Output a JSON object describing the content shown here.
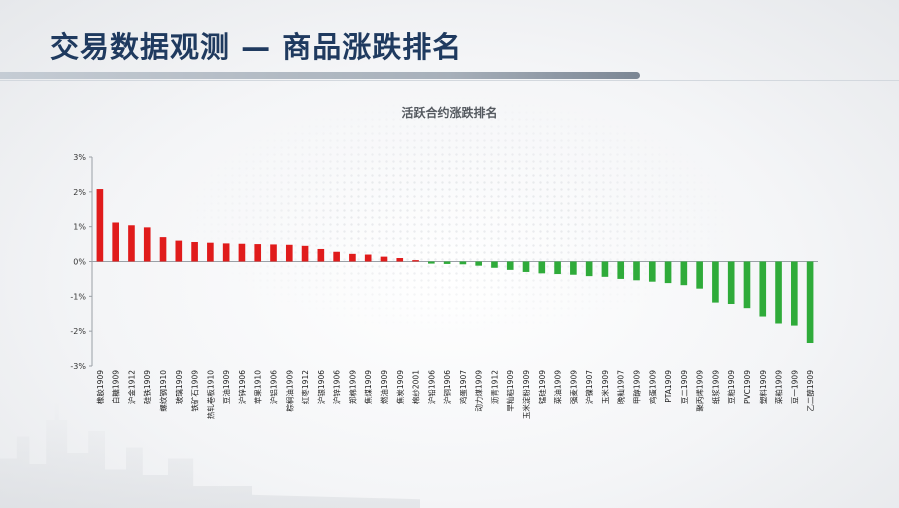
{
  "header": {
    "title": "交易数据观测 — 商品涨跌排名"
  },
  "chart_data": {
    "type": "bar",
    "title": "活跃合约涨跌排名",
    "xlabel": "",
    "ylabel": "",
    "ylim": [
      -3,
      3
    ],
    "yticks": [
      3,
      2,
      1,
      0,
      -1,
      -2,
      -3
    ],
    "ytick_labels": [
      "3%",
      "2%",
      "1%",
      "0%",
      "-1%",
      "-2%",
      "-3%"
    ],
    "colors": {
      "positive": "#e01b1b",
      "negative": "#2fab3a"
    },
    "grid": false,
    "categories": [
      "橡胶1909",
      "白糖1909",
      "沪金1912",
      "硅铁1909",
      "螺纹钢1910",
      "玻璃1909",
      "铁矿石1909",
      "热轧卷板1910",
      "豆油1909",
      "沪锌1906",
      "苹果1910",
      "沪铝1906",
      "棕榈油1909",
      "红枣1912",
      "沪银1906",
      "沪锌1906",
      "郑棉1909",
      "焦煤1909",
      "燃油1909",
      "焦炭1909",
      "棉纱2001",
      "沪铅1906",
      "沪铜1906",
      "鸡蛋1907",
      "动力煤1909",
      "沥青1912",
      "早籼稻1909",
      "玉米淀粉1909",
      "锰硅1909",
      "菜油1909",
      "强麦1909",
      "沪镍1907",
      "玉米1909",
      "晚籼1907",
      "甲醇1909",
      "鸡蛋1909",
      "PTA1909",
      "豆二1909",
      "聚丙烯1909",
      "纸浆1909",
      "豆粕1909",
      "PVC1909",
      "塑料1909",
      "菜粕1909",
      "豆一1909",
      "乙二醇1909"
    ],
    "values": [
      2.08,
      1.12,
      1.04,
      0.98,
      0.7,
      0.6,
      0.56,
      0.54,
      0.52,
      0.51,
      0.5,
      0.49,
      0.48,
      0.45,
      0.36,
      0.28,
      0.22,
      0.2,
      0.14,
      0.1,
      0.04,
      -0.06,
      -0.07,
      -0.08,
      -0.12,
      -0.18,
      -0.24,
      -0.3,
      -0.34,
      -0.36,
      -0.38,
      -0.42,
      -0.44,
      -0.5,
      -0.54,
      -0.58,
      -0.62,
      -0.68,
      -0.78,
      -1.18,
      -1.22,
      -1.34,
      -1.58,
      -1.78,
      -1.84,
      -2.34
    ]
  }
}
